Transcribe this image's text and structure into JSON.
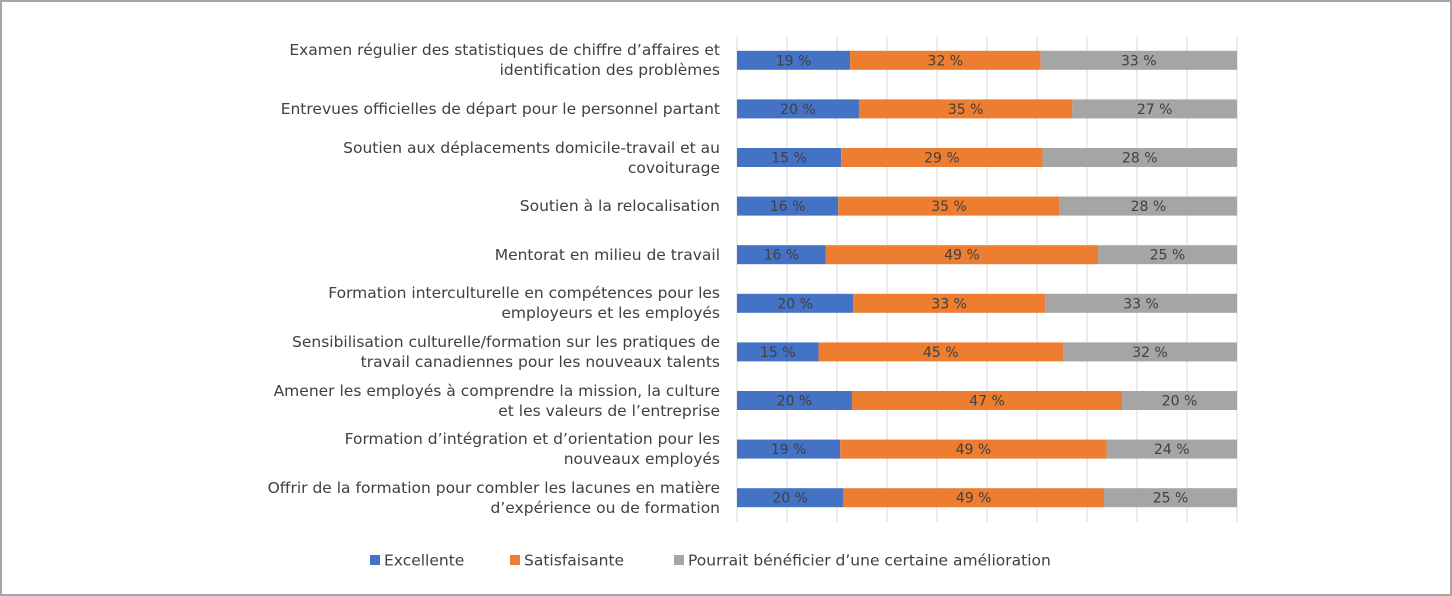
{
  "chart_data": {
    "type": "bar",
    "orientation": "horizontal",
    "stacked": "percent",
    "categories": [
      "Examen régulier des statistiques de chiffre d’affaires et\nidentification des problèmes",
      "Entrevues officielles de départ pour le personnel partant",
      "Soutien aux déplacements domicile-travail et au\ncovoiturage",
      "Soutien à la relocalisation",
      "Mentorat en milieu de travail",
      "Formation interculturelle en compétences pour les\nemployeurs et les employés",
      "Sensibilisation culturelle/formation sur les pratiques de\ntravail canadiennes pour les nouveaux talents",
      "Amener les employés à comprendre la mission, la culture\net les valeurs de l’entreprise",
      "Formation d’intégration et d’orientation pour les\nnouveaux employés",
      "Offrir de la formation pour combler les lacunes en matière\nd’expérience ou de formation"
    ],
    "series": [
      {
        "name": "Excellente",
        "color": "#4472c4",
        "values": [
          19,
          20,
          15,
          16,
          16,
          20,
          15,
          20,
          19,
          20
        ],
        "value_labels": [
          "19 %",
          "20 %",
          "15 %",
          "16 %",
          "16 %",
          "20 %",
          "15 %",
          "20 %",
          "19 %",
          "20 %"
        ]
      },
      {
        "name": "Satisfaisante",
        "color": "#ed7d31",
        "values": [
          32,
          35,
          29,
          35,
          49,
          33,
          45,
          47,
          49,
          49
        ],
        "value_labels": [
          "32 %",
          "35 %",
          "29 %",
          "35 %",
          "49 %",
          "33 %",
          "45 %",
          "47 %",
          "49 %",
          "49 %"
        ]
      },
      {
        "name": "Pourrait bénéficier d’une certaine amélioration",
        "color": "#a5a5a5",
        "values": [
          33,
          27,
          28,
          28,
          25,
          33,
          32,
          20,
          24,
          25
        ],
        "value_labels": [
          "33 %",
          "27 %",
          "28 %",
          "28 %",
          "25 %",
          "33 %",
          "32 %",
          "20 %",
          "24 %",
          "25 %"
        ]
      }
    ],
    "xlim": [
      0,
      100
    ],
    "xticks": [
      0,
      10,
      20,
      30,
      40,
      50,
      60,
      70,
      80,
      90,
      100
    ],
    "grid": true,
    "legend": "bottom"
  }
}
